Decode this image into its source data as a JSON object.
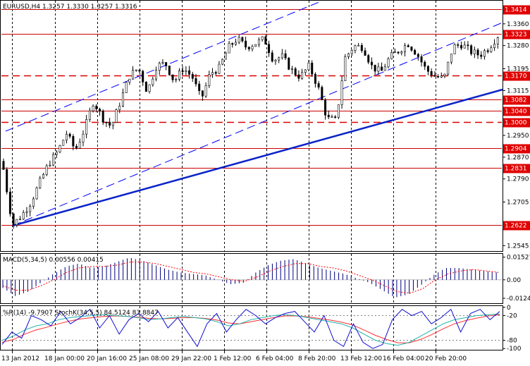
{
  "chart_data": [
    {
      "type": "candlestick",
      "title": "EURUSD,H4  1.3257 1.3330 1.3257 1.3316",
      "y_ticks": [
        "1.3360",
        "1.3280",
        "1.3195",
        "1.3115",
        "1.2950",
        "1.2870",
        "1.2790",
        "1.2705",
        "1.2545"
      ],
      "y_tick_values": [
        1.336,
        1.328,
        1.3195,
        1.3115,
        1.295,
        1.287,
        1.279,
        1.2705,
        1.2545
      ],
      "ylim": [
        1.2525,
        1.3445
      ],
      "x_ticks": [
        "13 Jan 2012",
        "18 Jan 00:00",
        "20 Jan 16:00",
        "25 Jan 08:00",
        "29 Jan 22:00",
        "1 Feb 12:00",
        "6 Feb 04:00",
        "8 Feb 20:00",
        "13 Feb 12:00",
        "16 Feb 04:00",
        "20 Feb 20:00"
      ],
      "levels": [
        {
          "value": 1.3414,
          "label": "1.3414",
          "style": "solid"
        },
        {
          "value": 1.3323,
          "label": "1.3323",
          "style": "solid"
        },
        {
          "value": 1.317,
          "label": "1.3170",
          "style": "dashed"
        },
        {
          "value": 1.3082,
          "label": "1.3082",
          "style": "solid"
        },
        {
          "value": 1.304,
          "label": "1.3040",
          "style": "solid"
        },
        {
          "value": 1.3,
          "label": "1.3000",
          "style": "dashed"
        },
        {
          "value": 1.2904,
          "label": "1.2904",
          "style": "solid"
        },
        {
          "value": 1.2831,
          "label": "1.2831",
          "style": "solid"
        },
        {
          "value": 1.2622,
          "label": "1.2622",
          "style": "solid"
        }
      ],
      "current_price": 1.3316,
      "price_path": [
        1.2825,
        1.262,
        1.2655,
        1.2702,
        1.2775,
        1.2845,
        1.289,
        1.2958,
        1.2895,
        1.2972,
        1.3075,
        1.3015,
        1.2982,
        1.3075,
        1.3168,
        1.3198,
        1.311,
        1.3205,
        1.3215,
        1.3148,
        1.3198,
        1.3165,
        1.3082,
        1.3178,
        1.3198,
        1.3272,
        1.3305,
        1.3275,
        1.3288,
        1.3305,
        1.3228,
        1.324,
        1.3192,
        1.3165,
        1.3205,
        1.3128,
        1.3012,
        1.3005,
        1.3235,
        1.3278,
        1.3275,
        1.3202,
        1.3182,
        1.3238,
        1.3262,
        1.3288,
        1.325,
        1.3192,
        1.3168,
        1.3158,
        1.3275,
        1.3285,
        1.3258,
        1.3245,
        1.3272,
        1.3316
      ]
    },
    {
      "type": "histogram",
      "title": "MACD(5,34,5) 0.00556 0.00415",
      "y_ticks": [
        "0.01527",
        "0.00",
        "-0.01246"
      ],
      "y_tick_values": [
        0.01527,
        0,
        -0.01246
      ],
      "ylim": [
        -0.0158,
        0.0175
      ],
      "histogram": [
        -0.0055,
        -0.011,
        -0.008,
        -0.002,
        0.004,
        0.009,
        0.011,
        0.008,
        0.009,
        0.012,
        0.015,
        0.013,
        0.01,
        0.007,
        0.005,
        0.004,
        0.003,
        0.0,
        -0.003,
        -0.002,
        0.005,
        0.01,
        0.013,
        0.014,
        0.011,
        0.008,
        0.006,
        0.004,
        0.001,
        -0.002,
        -0.007,
        -0.012,
        -0.01,
        -0.004,
        0.003,
        0.008,
        0.008,
        0.007,
        0.006,
        0.005
      ],
      "signal": [
        -0.004,
        -0.007,
        -0.007,
        -0.004,
        0.0,
        0.005,
        0.008,
        0.009,
        0.009,
        0.01,
        0.012,
        0.012,
        0.011,
        0.009,
        0.007,
        0.005,
        0.004,
        0.002,
        0.0,
        -0.001,
        0.002,
        0.006,
        0.009,
        0.011,
        0.011,
        0.009,
        0.008,
        0.006,
        0.003,
        0.0,
        -0.004,
        -0.008,
        -0.009,
        -0.006,
        0.0,
        0.004,
        0.006,
        0.007,
        0.006,
        0.005
      ]
    },
    {
      "type": "line",
      "title": "%R(14) -9.7907 StochK(34,5,5) 84.5124 83.8847",
      "y_ticks": [
        "0",
        "-20",
        "-80",
        "-100"
      ],
      "y_tick_values": [
        0,
        -20,
        -80,
        -100
      ],
      "ylim": [
        -103,
        3
      ],
      "williams_r": [
        -90,
        -60,
        -75,
        -20,
        -30,
        -45,
        -10,
        -40,
        -25,
        -5,
        -50,
        -20,
        -65,
        -30,
        -15,
        -35,
        -10,
        -50,
        -25,
        -60,
        -95,
        -40,
        -15,
        -60,
        -30,
        -5,
        -20,
        -40,
        -25,
        -15,
        -10,
        -35,
        -60,
        -20,
        -80,
        -95,
        -40,
        -85,
        -100,
        -90,
        -30,
        -5,
        -20,
        -10,
        -40,
        -25,
        -5,
        -60,
        -15,
        -5,
        -30,
        -10
      ],
      "stoch_k": [
        -80,
        -70,
        -55,
        -45,
        -40,
        -30,
        -25,
        -22,
        -20,
        -18,
        -20,
        -22,
        -25,
        -30,
        -28,
        -25,
        -22,
        -25,
        -28,
        -35,
        -45,
        -40,
        -30,
        -25,
        -20,
        -18,
        -20,
        -25,
        -30,
        -35,
        -40,
        -50,
        -65,
        -80,
        -88,
        -92,
        -85,
        -70,
        -55,
        -40,
        -30,
        -25,
        -20,
        -18,
        -16
      ],
      "stoch_d": [
        -85,
        -78,
        -65,
        -55,
        -48,
        -40,
        -33,
        -28,
        -25,
        -22,
        -21,
        -22,
        -24,
        -27,
        -28,
        -27,
        -25,
        -25,
        -27,
        -31,
        -38,
        -40,
        -35,
        -30,
        -25,
        -21,
        -21,
        -23,
        -27,
        -31,
        -36,
        -43,
        -55,
        -68,
        -78,
        -86,
        -86,
        -78,
        -66,
        -52,
        -40,
        -32,
        -26,
        -21,
        -18
      ]
    }
  ]
}
